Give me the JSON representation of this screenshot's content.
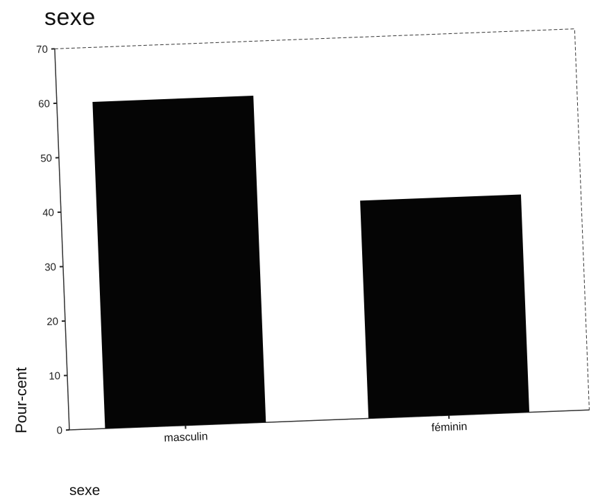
{
  "chart_data": {
    "type": "bar",
    "title": "sexe",
    "xlabel": "sexe",
    "ylabel": "Pour-cent",
    "categories": [
      "masculin",
      "féminin"
    ],
    "values": [
      60,
      40
    ],
    "ylim": [
      0,
      70
    ],
    "yticks": [
      0,
      10,
      20,
      30,
      40,
      50,
      60,
      70
    ],
    "grid": false,
    "legend": "none",
    "bar_color": "#050505",
    "frame_color": "#333333"
  }
}
